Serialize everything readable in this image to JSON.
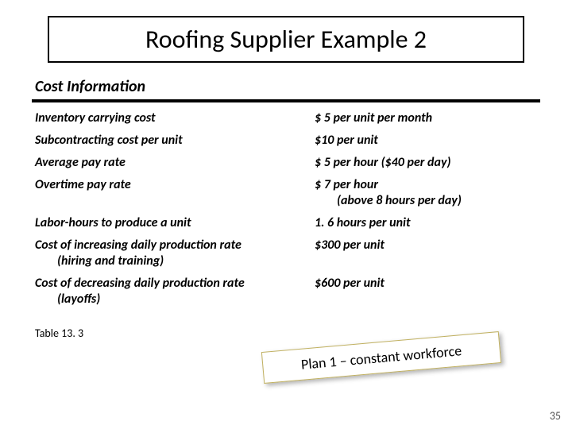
{
  "title": "Roofing Supplier Example 2",
  "subtitle": "Cost Information",
  "rows": [
    {
      "label": "Inventory carrying cost",
      "value": "$ 5 per unit per month"
    },
    {
      "label": "Subcontracting cost per unit",
      "value": "$10 per unit"
    },
    {
      "label": "Average pay rate",
      "value": "$ 5 per hour ($40 per day)"
    },
    {
      "label": "Overtime pay rate",
      "value": "$ 7 per hour",
      "value_extra": "(above 8 hours per day)"
    },
    {
      "label": "Labor-hours to produce a unit",
      "value": "1. 6 hours per unit"
    },
    {
      "label": "Cost of increasing daily production rate",
      "label_extra": "(hiring and training)",
      "value": "$300 per unit"
    },
    {
      "label": "Cost of decreasing daily production rate",
      "label_extra": "(layoffs)",
      "value": "$600 per unit"
    }
  ],
  "table_ref": "Table 13. 3",
  "callout": "Plan 1 – constant workforce",
  "page_number": "35",
  "colors": {
    "background": "#ffffff",
    "text": "#000000",
    "rule": "#000000",
    "callout_border": "#c0b060",
    "page_num": "#555555"
  },
  "fontsizes": {
    "title": 32,
    "subtitle": 20,
    "body": 16,
    "table_ref": 14,
    "callout": 18,
    "page_num": 14
  }
}
